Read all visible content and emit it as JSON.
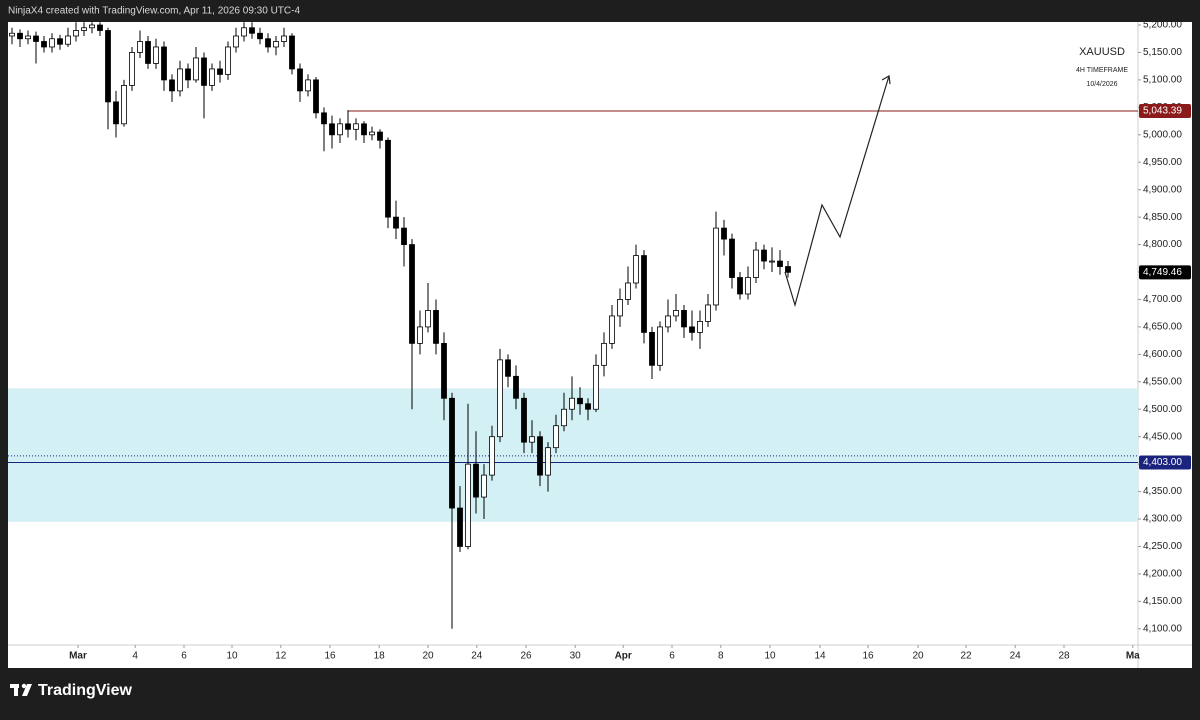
{
  "header": "NinjaX4 created with TradingView.com, Apr 11, 2026 09:30 UTC-4",
  "footer": {
    "brand": "TradingView"
  },
  "chart_data": {
    "type": "candlestick",
    "symbol": "XAUUSD",
    "annotations": [
      "4H TIMEFRAME",
      "10/4/2026"
    ],
    "up_color": "#ffffff",
    "down_color": "#000000",
    "wick_color": "#000000",
    "ylim": [
      4070.5,
      5205.5
    ],
    "yticks": [
      {
        "value": 4100,
        "label": "4,100.00"
      },
      {
        "value": 4150,
        "label": "4,150.00"
      },
      {
        "value": 4200,
        "label": "4,200.00"
      },
      {
        "value": 4250,
        "label": "4,250.00"
      },
      {
        "value": 4300,
        "label": "4,300.00"
      },
      {
        "value": 4350,
        "label": "4,350.00"
      },
      {
        "value": 4400,
        "label": "4,400.00"
      },
      {
        "value": 4450,
        "label": "4,450.00"
      },
      {
        "value": 4500,
        "label": "4,500.00"
      },
      {
        "value": 4550,
        "label": "4,550.00"
      },
      {
        "value": 4600,
        "label": "4,600.00"
      },
      {
        "value": 4650,
        "label": "4,650.00"
      },
      {
        "value": 4700,
        "label": "4,700.00"
      },
      {
        "value": 4750,
        "label": "4,750.00"
      },
      {
        "value": 4800,
        "label": "4,800.00"
      },
      {
        "value": 4850,
        "label": "4,850.00"
      },
      {
        "value": 4900,
        "label": "4,900.00"
      },
      {
        "value": 4950,
        "label": "4,950.00"
      },
      {
        "value": 5000,
        "label": "5,000.00"
      },
      {
        "value": 5050,
        "label": "5,050.00"
      },
      {
        "value": 5100,
        "label": "5,100.00"
      },
      {
        "value": 5150,
        "label": "5,150.00"
      },
      {
        "value": 5200,
        "label": "5,200.00"
      }
    ],
    "xlim": [
      -0.5,
      140.75
    ],
    "xticks": [
      {
        "value": 8.25,
        "label": "Mar"
      },
      {
        "value": 15.4,
        "label": "4"
      },
      {
        "value": 21.5,
        "label": "6"
      },
      {
        "value": 27.5,
        "label": "10"
      },
      {
        "value": 33.6,
        "label": "12"
      },
      {
        "value": 39.75,
        "label": "16"
      },
      {
        "value": 45.9,
        "label": "18"
      },
      {
        "value": 52,
        "label": "20"
      },
      {
        "value": 58.1,
        "label": "24"
      },
      {
        "value": 64.25,
        "label": "26"
      },
      {
        "value": 70.4,
        "label": "30"
      },
      {
        "value": 76.4,
        "label": "Apr"
      },
      {
        "value": 82.5,
        "label": "6"
      },
      {
        "value": 88.6,
        "label": "8"
      },
      {
        "value": 94.75,
        "label": "10"
      },
      {
        "value": 101,
        "label": "14"
      },
      {
        "value": 107,
        "label": "16"
      },
      {
        "value": 113.25,
        "label": "20"
      },
      {
        "value": 119.25,
        "label": "22"
      },
      {
        "value": 125.4,
        "label": "24"
      },
      {
        "value": 131.5,
        "label": "28"
      },
      {
        "value": 140.1,
        "label": "Ma"
      }
    ],
    "zone": {
      "low": 4295,
      "high": 4538,
      "color": "#d3f0f5"
    },
    "levels": [
      {
        "value": 5043.39,
        "label": "5,043.39",
        "color": "#8b1a1a",
        "start": 42
      },
      {
        "value": 4403,
        "label": "4,403.00",
        "color": "#1a237e",
        "start": -0.5
      }
    ],
    "dotted_level": 4415,
    "last_price": {
      "value": 4749.46,
      "label": "4,749.46"
    },
    "candles": [
      [
        5180,
        5195,
        5165,
        5185
      ],
      [
        5185,
        5192,
        5160,
        5175
      ],
      [
        5175,
        5190,
        5165,
        5180
      ],
      [
        5180,
        5188,
        5130,
        5170
      ],
      [
        5170,
        5180,
        5150,
        5160
      ],
      [
        5160,
        5185,
        5150,
        5175
      ],
      [
        5175,
        5182,
        5155,
        5165
      ],
      [
        5165,
        5195,
        5160,
        5180
      ],
      [
        5180,
        5205,
        5170,
        5190
      ],
      [
        5190,
        5205,
        5180,
        5195
      ],
      [
        5195,
        5205,
        5185,
        5200
      ],
      [
        5200,
        5205,
        5180,
        5190
      ],
      [
        5190,
        5195,
        5010,
        5060
      ],
      [
        5060,
        5080,
        4995,
        5020
      ],
      [
        5020,
        5100,
        5015,
        5090
      ],
      [
        5090,
        5160,
        5080,
        5150
      ],
      [
        5150,
        5190,
        5140,
        5170
      ],
      [
        5170,
        5180,
        5120,
        5130
      ],
      [
        5130,
        5175,
        5120,
        5160
      ],
      [
        5160,
        5170,
        5080,
        5100
      ],
      [
        5100,
        5110,
        5060,
        5080
      ],
      [
        5080,
        5135,
        5070,
        5120
      ],
      [
        5120,
        5130,
        5085,
        5100
      ],
      [
        5100,
        5160,
        5095,
        5140
      ],
      [
        5140,
        5150,
        5030,
        5090
      ],
      [
        5090,
        5130,
        5080,
        5120
      ],
      [
        5120,
        5135,
        5095,
        5110
      ],
      [
        5110,
        5170,
        5100,
        5160
      ],
      [
        5160,
        5195,
        5150,
        5180
      ],
      [
        5180,
        5205,
        5170,
        5195
      ],
      [
        5195,
        5205,
        5175,
        5185
      ],
      [
        5185,
        5195,
        5165,
        5175
      ],
      [
        5175,
        5185,
        5150,
        5160
      ],
      [
        5160,
        5180,
        5145,
        5170
      ],
      [
        5170,
        5195,
        5160,
        5180
      ],
      [
        5180,
        5185,
        5110,
        5120
      ],
      [
        5120,
        5130,
        5060,
        5080
      ],
      [
        5080,
        5110,
        5070,
        5100
      ],
      [
        5100,
        5105,
        5030,
        5040
      ],
      [
        5040,
        5050,
        4970,
        5020
      ],
      [
        5020,
        5035,
        4975,
        5000
      ],
      [
        5000,
        5030,
        4985,
        5020
      ],
      [
        5020,
        5045,
        4995,
        5010
      ],
      [
        5010,
        5030,
        4990,
        5020
      ],
      [
        5020,
        5025,
        4985,
        5000
      ],
      [
        5000,
        5015,
        4990,
        5005
      ],
      [
        5005,
        5010,
        4975,
        4990
      ],
      [
        4990,
        4995,
        4830,
        4850
      ],
      [
        4850,
        4880,
        4810,
        4830
      ],
      [
        4830,
        4850,
        4760,
        4800
      ],
      [
        4800,
        4810,
        4500,
        4620
      ],
      [
        4620,
        4680,
        4600,
        4650
      ],
      [
        4650,
        4730,
        4640,
        4680
      ],
      [
        4680,
        4700,
        4600,
        4620
      ],
      [
        4620,
        4640,
        4480,
        4520
      ],
      [
        4520,
        4530,
        4100,
        4320
      ],
      [
        4320,
        4360,
        4240,
        4250
      ],
      [
        4250,
        4510,
        4245,
        4400
      ],
      [
        4400,
        4460,
        4310,
        4340
      ],
      [
        4340,
        4400,
        4300,
        4380
      ],
      [
        4380,
        4470,
        4370,
        4450
      ],
      [
        4450,
        4610,
        4440,
        4590
      ],
      [
        4590,
        4600,
        4540,
        4560
      ],
      [
        4560,
        4580,
        4500,
        4520
      ],
      [
        4520,
        4530,
        4420,
        4440
      ],
      [
        4440,
        4480,
        4420,
        4450
      ],
      [
        4450,
        4460,
        4360,
        4380
      ],
      [
        4380,
        4440,
        4350,
        4430
      ],
      [
        4430,
        4490,
        4420,
        4470
      ],
      [
        4470,
        4530,
        4460,
        4500
      ],
      [
        4500,
        4560,
        4480,
        4520
      ],
      [
        4520,
        4540,
        4490,
        4510
      ],
      [
        4510,
        4520,
        4480,
        4500
      ],
      [
        4500,
        4600,
        4495,
        4580
      ],
      [
        4580,
        4640,
        4560,
        4620
      ],
      [
        4620,
        4690,
        4610,
        4670
      ],
      [
        4670,
        4720,
        4650,
        4700
      ],
      [
        4700,
        4760,
        4690,
        4730
      ],
      [
        4730,
        4800,
        4720,
        4780
      ],
      [
        4780,
        4790,
        4620,
        4640
      ],
      [
        4640,
        4650,
        4555,
        4580
      ],
      [
        4580,
        4660,
        4570,
        4650
      ],
      [
        4650,
        4700,
        4640,
        4670
      ],
      [
        4670,
        4710,
        4660,
        4680
      ],
      [
        4680,
        4690,
        4630,
        4650
      ],
      [
        4650,
        4680,
        4625,
        4640
      ],
      [
        4640,
        4680,
        4610,
        4660
      ],
      [
        4660,
        4710,
        4650,
        4690
      ],
      [
        4690,
        4860,
        4680,
        4830
      ],
      [
        4830,
        4845,
        4780,
        4810
      ],
      [
        4810,
        4820,
        4720,
        4740
      ],
      [
        4740,
        4750,
        4700,
        4710
      ],
      [
        4710,
        4760,
        4700,
        4740
      ],
      [
        4740,
        4805,
        4730,
        4790
      ],
      [
        4790,
        4800,
        4755,
        4770
      ],
      [
        4770,
        4795,
        4750,
        4770
      ],
      [
        4770,
        4790,
        4745,
        4760
      ],
      [
        4760,
        4770,
        4740,
        4749.46
      ]
    ]
  }
}
